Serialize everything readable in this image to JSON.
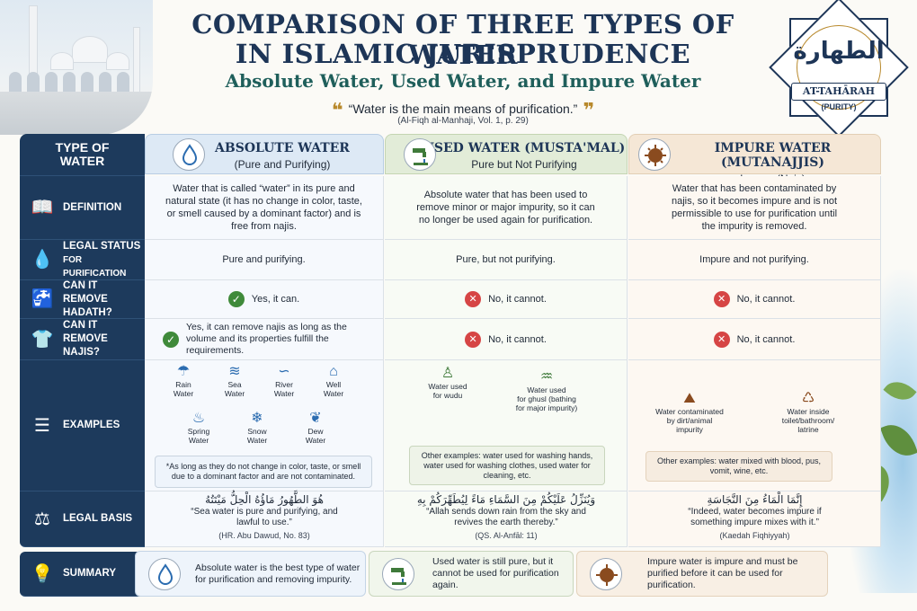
{
  "header": {
    "title_line1": "COMPARISON OF THREE TYPES OF WATER",
    "title_line2": "IN ISLAMIC JURISPRUDENCE",
    "subtitle": "Absolute Water, Used Water, and Impure Water",
    "quote": "“Water is the main means of purification.”",
    "quote_source": "(Al-Fiqh al-Manhaji, Vol. 1, p. 29)"
  },
  "badge": {
    "arabic": "الطهارة",
    "label": "AT-TAHĀRAH",
    "sublabel": "(PURITY)"
  },
  "table": {
    "corner_label": "TYPE OF WATER",
    "columns": [
      {
        "title": "ABSOLUTE WATER",
        "subtitle": "(Pure and Purifying)",
        "icon": "water-drop-icon"
      },
      {
        "title": "USED WATER (MUSTA'MAL)",
        "subtitle": "Pure but Not Purifying",
        "icon": "tap-water-icon"
      },
      {
        "title": "IMPURE WATER (MUTANAJJIS)",
        "subtitle": "Impure (Najs)",
        "icon": "germ-icon"
      }
    ],
    "rows": {
      "definition": {
        "label": "DEFINITION",
        "absolute": "Water that is called “water” in its pure and natural state (it has no change in color, taste, or smell caused by a dominant factor) and is free from najis.",
        "used": "Absolute water that has been used to remove minor or major impurity, so it can no longer be used again for purification.",
        "impure": "Water that has been contaminated by najis, so it becomes impure and is not permissible to use for purification until the impurity is removed."
      },
      "legal_status": {
        "label_line1": "LEGAL STATUS",
        "label_line2": "FOR PURIFICATION",
        "absolute": "Pure and purifying.",
        "used": "Pure, but not purifying.",
        "impure": "Impure and not purifying."
      },
      "remove_hadath": {
        "label_line1": "CAN IT REMOVE",
        "label_line2": "HADATH?",
        "absolute": "Yes, it can.",
        "used": "No, it cannot.",
        "impure": "No, it cannot."
      },
      "remove_najis": {
        "label_line1": "CAN IT REMOVE",
        "label_line2": "NAJIS?",
        "absolute": "Yes, it can remove najis as long as the volume and its properties fulfill the requirements.",
        "used": "No, it cannot.",
        "impure": "No, it cannot."
      },
      "examples": {
        "label": "EXAMPLES",
        "absolute_items": [
          {
            "label1": "Rain",
            "label2": "Water",
            "icon": "rain-cloud-icon",
            "glyph": "☂"
          },
          {
            "label1": "Sea",
            "label2": "Water",
            "icon": "wave-icon",
            "glyph": "≋"
          },
          {
            "label1": "River",
            "label2": "Water",
            "icon": "river-icon",
            "glyph": "∽"
          },
          {
            "label1": "Well",
            "label2": "Water",
            "icon": "well-icon",
            "glyph": "⌂"
          },
          {
            "label1": "Spring",
            "label2": "Water",
            "icon": "spring-icon",
            "glyph": "♨"
          },
          {
            "label1": "Snow",
            "label2": "Water",
            "icon": "snowflake-icon",
            "glyph": "❄"
          },
          {
            "label1": "Dew",
            "label2": "Water",
            "icon": "leaf-icon",
            "glyph": "❦"
          }
        ],
        "absolute_note": "*As long as they do not change in color, taste, or smell due to a dominant factor and are not contaminated.",
        "used_items": [
          {
            "label1": "Water used",
            "label2": "for wudu",
            "label3": "",
            "icon": "person-wudu-icon",
            "glyph": "♙"
          },
          {
            "label1": "Water used",
            "label2": "for ghusl (bathing",
            "label3": "for major impurity)",
            "icon": "bathtub-icon",
            "glyph": "♒"
          }
        ],
        "used_note": "Other examples: water used for washing hands, water used for washing clothes, used water for cleaning, etc.",
        "impure_items": [
          {
            "label1": "Water contaminated",
            "label2": "by dirt/animal",
            "label3": "impurity",
            "icon": "dirt-pile-icon",
            "glyph": "⛰"
          },
          {
            "label1": "Water inside",
            "label2": "toilet/bathroom/",
            "label3": "latrine",
            "icon": "toilet-icon",
            "glyph": "♺"
          }
        ],
        "impure_note": "Other examples: water mixed with blood, pus, vomit, wine, etc."
      },
      "legal_basis": {
        "label": "LEGAL BASIS",
        "absolute_arabic": "هُوَ الطَّهُورُ مَاؤُهُ الْحِلُّ مَيْتَتُهُ",
        "absolute_text": "“Sea water is pure and purifying, and lawful to use.”",
        "absolute_src": "(HR. Abu Dawud, No. 83)",
        "used_arabic": "وَيُنَزِّلُ عَلَيْكُمْ مِنَ السَّمَاءِ مَاءً لِيُطَهِّرَكُمْ بِهِ",
        "used_text": "“Allah sends down rain from the sky and revives the earth thereby.”",
        "used_src": "(QS. Al-Anfāl: 11)",
        "impure_arabic": "إِنَّمَا الْمَاءُ مِنَ النَّجَاسَةِ",
        "impure_text": "“Indeed, water becomes impure if something impure mixes with it.”",
        "impure_src": "(Kaedah Fiqhiyyah)"
      },
      "summary": {
        "label": "SUMMARY",
        "absolute": "Absolute water is the best type of water for purification and removing impurity.",
        "used": "Used water is still pure, but it cannot be used for purification again.",
        "impure": "Impure water is impure and must be purified before it can be used for purification."
      }
    }
  },
  "colors": {
    "navy": "#1d3a5c",
    "title": "#1d3557",
    "teal": "#1f5f5b",
    "gold": "#b8892c",
    "yes_green": "#3f8a3a",
    "no_red": "#d64545"
  }
}
